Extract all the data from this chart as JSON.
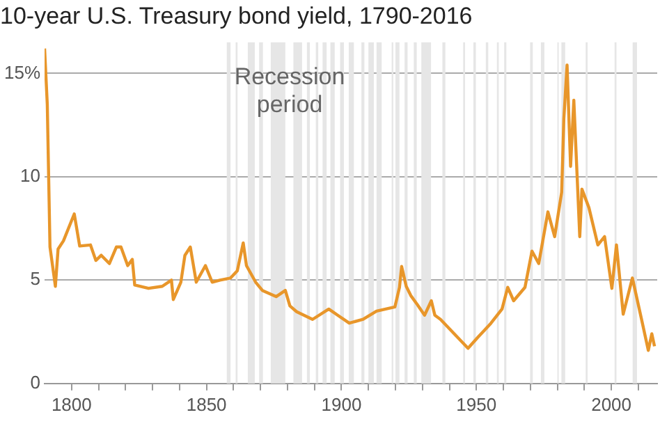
{
  "chart_data": {
    "type": "line",
    "title": "10-year U.S. Treasury bond yield, 1790-2016",
    "annotations": [
      "Recession period"
    ],
    "x": [
      1790,
      1791,
      1792,
      1794,
      1795,
      1797,
      1801,
      1803,
      1807,
      1809,
      1811,
      1814,
      1816.6,
      1818.3,
      1820.8,
      1822.5,
      1823.4,
      1828.5,
      1833.6,
      1837,
      1837.7,
      1840.5,
      1842,
      1844,
      1846.2,
      1849.6,
      1852.1,
      1855,
      1858.9,
      1861.4,
      1863.6,
      1864.8,
      1868.2,
      1870.7,
      1875.8,
      1879.2,
      1880.9,
      1883.4,
      1889.3,
      1895.3,
      1898.6,
      1902.9,
      1908,
      1913,
      1919.8,
      1921.5,
      1922.3,
      1924,
      1925.7,
      1928.2,
      1930.8,
      1933.3,
      1934.6,
      1936.7,
      1941.8,
      1946.9,
      1950.3,
      1955.3,
      1959.5,
      1961.6,
      1963.8,
      1968,
      1970.6,
      1973.1,
      1976.5,
      1979,
      1981.6,
      1982.4,
      1983.6,
      1984.9,
      1986.1,
      1988.3,
      1989.1,
      1991.7,
      1995,
      1997.5,
      2000.2,
      2001.9,
      2004.4,
      2007.8,
      2011.2,
      2013.7,
      2015,
      2016
    ],
    "series": [
      {
        "color": "#e8962a",
        "values": [
          16.2,
          13.5,
          6.6,
          4.7,
          6.5,
          6.9,
          8.2,
          6.65,
          6.7,
          5.95,
          6.2,
          5.8,
          6.6,
          6.6,
          5.7,
          6.0,
          4.76,
          4.6,
          4.7,
          5.0,
          4.06,
          4.9,
          6.2,
          6.6,
          4.9,
          5.7,
          4.9,
          5.0,
          5.1,
          5.45,
          6.8,
          5.7,
          4.9,
          4.5,
          4.2,
          4.5,
          3.75,
          3.47,
          3.1,
          3.6,
          3.3,
          2.92,
          3.1,
          3.5,
          3.7,
          4.65,
          5.66,
          4.7,
          4.25,
          3.8,
          3.3,
          4.0,
          3.3,
          3.1,
          2.4,
          1.7,
          2.2,
          2.9,
          3.6,
          4.65,
          4.0,
          4.65,
          6.4,
          5.8,
          8.3,
          7.1,
          9.25,
          12.8,
          15.4,
          10.5,
          13.7,
          7.1,
          9.4,
          8.5,
          6.7,
          7.1,
          4.6,
          6.7,
          3.35,
          5.1,
          3.1,
          1.6,
          2.4,
          1.8
        ]
      }
    ],
    "xlim": [
      1790,
      2017
    ],
    "ylim": [
      0,
      16.5
    ],
    "xticks": [
      {
        "value": 1800,
        "label": "1800"
      },
      {
        "value": 1810,
        "label": null
      },
      {
        "value": 1820,
        "label": null
      },
      {
        "value": 1830,
        "label": null
      },
      {
        "value": 1840,
        "label": null
      },
      {
        "value": 1850,
        "label": "1850"
      },
      {
        "value": 1860,
        "label": null
      },
      {
        "value": 1870,
        "label": null
      },
      {
        "value": 1880,
        "label": null
      },
      {
        "value": 1890,
        "label": null
      },
      {
        "value": 1900,
        "label": "1900"
      },
      {
        "value": 1910,
        "label": null
      },
      {
        "value": 1920,
        "label": null
      },
      {
        "value": 1930,
        "label": null
      },
      {
        "value": 1940,
        "label": null
      },
      {
        "value": 1950,
        "label": "1950"
      },
      {
        "value": 1960,
        "label": null
      },
      {
        "value": 1970,
        "label": null
      },
      {
        "value": 1980,
        "label": null
      },
      {
        "value": 1990,
        "label": null
      },
      {
        "value": 2000,
        "label": "2000"
      },
      {
        "value": 2010,
        "label": null
      }
    ],
    "yticks": [
      0,
      5,
      10,
      {
        "value": 15,
        "label": "15%"
      }
    ],
    "grid": "y",
    "marker": "none",
    "line_style": "solid",
    "bands": [
      {
        "axis": "x",
        "from": 1857.5,
        "to": 1858.9,
        "color": "#e6e6e6"
      },
      {
        "axis": "x",
        "from": 1860.8,
        "to": 1861.5,
        "color": "#e6e6e6"
      },
      {
        "axis": "x",
        "from": 1865.3,
        "to": 1867.9,
        "color": "#e6e6e6"
      },
      {
        "axis": "x",
        "from": 1869.5,
        "to": 1870.9,
        "color": "#e6e6e6"
      },
      {
        "axis": "x",
        "from": 1873.8,
        "to": 1879.2,
        "color": "#e6e6e6"
      },
      {
        "axis": "x",
        "from": 1882.2,
        "to": 1885.4,
        "color": "#e6e6e6"
      },
      {
        "axis": "x",
        "from": 1887.2,
        "to": 1888.3,
        "color": "#e6e6e6"
      },
      {
        "axis": "x",
        "from": 1890.5,
        "to": 1891.4,
        "color": "#e6e6e6"
      },
      {
        "axis": "x",
        "from": 1893,
        "to": 1894.5,
        "color": "#e6e6e6"
      },
      {
        "axis": "x",
        "from": 1895.9,
        "to": 1897.5,
        "color": "#e6e6e6"
      },
      {
        "axis": "x",
        "from": 1899.5,
        "to": 1900.9,
        "color": "#e6e6e6"
      },
      {
        "axis": "x",
        "from": 1902.7,
        "to": 1904.6,
        "color": "#e6e6e6"
      },
      {
        "axis": "x",
        "from": 1907.4,
        "to": 1908.5,
        "color": "#e6e6e6"
      },
      {
        "axis": "x",
        "from": 1910,
        "to": 1912,
        "color": "#e6e6e6"
      },
      {
        "axis": "x",
        "from": 1913,
        "to": 1914.9,
        "color": "#e6e6e6"
      },
      {
        "axis": "x",
        "from": 1918.6,
        "to": 1919.2,
        "color": "#e6e6e6"
      },
      {
        "axis": "x",
        "from": 1920,
        "to": 1921.5,
        "color": "#e6e6e6"
      },
      {
        "axis": "x",
        "from": 1923.4,
        "to": 1924.5,
        "color": "#e6e6e6"
      },
      {
        "axis": "x",
        "from": 1926.8,
        "to": 1927.9,
        "color": "#e6e6e6"
      },
      {
        "axis": "x",
        "from": 1929.6,
        "to": 1933.2,
        "color": "#e6e6e6"
      },
      {
        "axis": "x",
        "from": 1937.4,
        "to": 1938.5,
        "color": "#e6e6e6"
      },
      {
        "axis": "x",
        "from": 1945.1,
        "to": 1945.8,
        "color": "#e6e6e6"
      },
      {
        "axis": "x",
        "from": 1948.9,
        "to": 1949.8,
        "color": "#e6e6e6"
      },
      {
        "axis": "x",
        "from": 1953.5,
        "to": 1954.4,
        "color": "#e6e6e6"
      },
      {
        "axis": "x",
        "from": 1957.6,
        "to": 1958.3,
        "color": "#e6e6e6"
      },
      {
        "axis": "x",
        "from": 1960.3,
        "to": 1961.1,
        "color": "#e6e6e6"
      },
      {
        "axis": "x",
        "from": 1969.9,
        "to": 1970.9,
        "color": "#e6e6e6"
      },
      {
        "axis": "x",
        "from": 1973.9,
        "to": 1975.2,
        "color": "#e6e6e6"
      },
      {
        "axis": "x",
        "from": 1980,
        "to": 1980.5,
        "color": "#e6e6e6"
      },
      {
        "axis": "x",
        "from": 1981.5,
        "to": 1982.9,
        "color": "#e6e6e6"
      },
      {
        "axis": "x",
        "from": 1990.5,
        "to": 1991.2,
        "color": "#e6e6e6"
      },
      {
        "axis": "x",
        "from": 2001.2,
        "to": 2001.9,
        "color": "#e6e6e6"
      },
      {
        "axis": "x",
        "from": 2007.9,
        "to": 2009.5,
        "color": "#e6e6e6"
      }
    ]
  }
}
